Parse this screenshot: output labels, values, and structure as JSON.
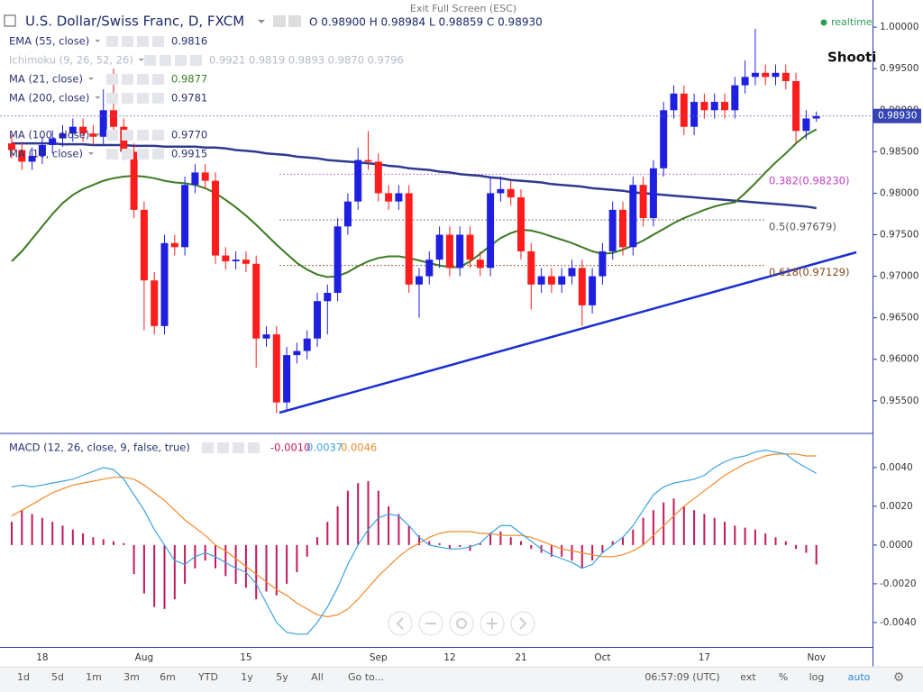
{
  "ui": {
    "header_ohlc": "O 0.98900 H 0.98984 L 0.98859 C 0.98930",
    "exit_fullscreen": "Exit Full Screen (ESC)",
    "realtime": "realtime",
    "annotation": "Shooti",
    "last_price": "0.98930",
    "indicators": [
      {
        "label": "EMA (55, close)",
        "value": "0.9816"
      },
      {
        "label": "Ichimoku (9, 26, 52, 26)",
        "value": "0.9921 0.9819 0.9893 0.9870 0.9796"
      },
      {
        "value": "0.9877"
      },
      {
        "value": "0.9781"
      },
      {
        "label": "MA (100, close)",
        "value": "0.9770"
      },
      {
        "label": "MA (10, close)",
        "value": "0.9915"
      }
    ],
    "macd_values": [
      "-0.0010",
      "0.0037",
      "0.0046"
    ],
    "toolbar": [
      "1d",
      "5d",
      "1m",
      "3m",
      "6m",
      "YTD",
      "1y",
      "5y",
      "All",
      "Go to..."
    ],
    "clock": "06:57:09 (UTC)",
    "right_buttons": [
      "ext",
      "%",
      "log",
      "auto"
    ]
  },
  "chart_data": [
    {
      "type": "candlestick",
      "title": "U.S. Dollar/Swiss Franc, D, FXCM",
      "categories": [
        null,
        null,
        null,
        "18",
        null,
        null,
        null,
        null,
        null,
        null,
        null,
        null,
        null,
        "Aug",
        null,
        null,
        null,
        null,
        null,
        null,
        null,
        null,
        null,
        "15",
        null,
        null,
        null,
        null,
        null,
        null,
        null,
        null,
        null,
        null,
        null,
        null,
        "Sep",
        null,
        null,
        null,
        null,
        null,
        null,
        "12",
        null,
        null,
        null,
        null,
        null,
        null,
        "21",
        null,
        null,
        null,
        null,
        null,
        null,
        null,
        "Oct",
        null,
        null,
        null,
        null,
        null,
        null,
        null,
        null,
        null,
        "17",
        null,
        null,
        null,
        null,
        null,
        null,
        null,
        null,
        null,
        null,
        "Nov"
      ],
      "open": [
        0.986,
        0.9852,
        0.9838,
        0.9845,
        0.9858,
        0.9866,
        0.9872,
        0.988,
        0.9872,
        0.9868,
        0.99,
        0.988,
        0.985,
        0.978,
        0.9695,
        0.964,
        0.974,
        0.9735,
        0.981,
        0.9825,
        0.9815,
        0.9725,
        0.9718,
        0.972,
        0.9715,
        0.9625,
        0.963,
        0.9548,
        0.9605,
        0.961,
        0.9625,
        0.967,
        0.968,
        0.976,
        0.979,
        0.984,
        0.9838,
        0.98,
        0.979,
        0.98,
        0.969,
        0.97,
        0.972,
        0.975,
        0.971,
        0.975,
        0.972,
        0.971,
        0.98,
        0.9805,
        0.9795,
        0.973,
        0.969,
        0.97,
        0.969,
        0.97,
        0.971,
        0.9665,
        0.97,
        0.973,
        0.978,
        0.9735,
        0.981,
        0.977,
        0.983,
        0.99,
        0.992,
        0.988,
        0.991,
        0.99,
        0.991,
        0.99,
        0.993,
        0.994,
        0.9945,
        0.994,
        0.9945,
        0.9935,
        0.9875,
        0.989
      ],
      "high": [
        0.987,
        0.9862,
        0.9855,
        0.9868,
        0.9876,
        0.9882,
        0.989,
        0.989,
        0.9882,
        0.9925,
        0.995,
        0.989,
        0.986,
        0.979,
        0.9705,
        0.975,
        0.975,
        0.982,
        0.9835,
        0.9835,
        0.9825,
        0.9735,
        0.973,
        0.973,
        0.9725,
        0.964,
        0.964,
        0.9615,
        0.962,
        0.9635,
        0.968,
        0.969,
        0.977,
        0.98,
        0.9855,
        0.9875,
        0.9848,
        0.981,
        0.981,
        0.981,
        0.971,
        0.973,
        0.976,
        0.976,
        0.976,
        0.976,
        0.973,
        0.982,
        0.982,
        0.9815,
        0.9805,
        0.974,
        0.971,
        0.971,
        0.971,
        0.972,
        0.972,
        0.971,
        0.974,
        0.979,
        0.979,
        0.982,
        0.982,
        0.984,
        0.991,
        0.993,
        0.993,
        0.992,
        0.992,
        0.992,
        0.992,
        0.994,
        0.996,
        0.9998,
        0.9955,
        0.9955,
        0.9955,
        0.9945,
        0.99,
        0.98984
      ],
      "low": [
        0.9842,
        0.9828,
        0.9828,
        0.9835,
        0.9848,
        0.9856,
        0.9862,
        0.9862,
        0.9858,
        0.9858,
        0.987,
        0.984,
        0.977,
        0.9635,
        0.963,
        0.963,
        0.9725,
        0.9725,
        0.98,
        0.9805,
        0.9715,
        0.9708,
        0.9708,
        0.9705,
        0.959,
        0.9615,
        0.9535,
        0.9538,
        0.9595,
        0.96,
        0.9615,
        0.963,
        0.967,
        0.975,
        0.978,
        0.9828,
        0.979,
        0.978,
        0.978,
        0.968,
        0.965,
        0.969,
        0.971,
        0.97,
        0.97,
        0.971,
        0.97,
        0.97,
        0.979,
        0.9785,
        0.972,
        0.966,
        0.968,
        0.968,
        0.968,
        0.969,
        0.964,
        0.9655,
        0.969,
        0.972,
        0.9725,
        0.9725,
        0.976,
        0.976,
        0.982,
        0.989,
        0.987,
        0.987,
        0.989,
        0.989,
        0.989,
        0.989,
        0.992,
        0.993,
        0.993,
        0.993,
        0.9925,
        0.986,
        0.9865,
        0.98859
      ],
      "close": [
        0.9852,
        0.9838,
        0.9845,
        0.9858,
        0.9866,
        0.9872,
        0.988,
        0.9872,
        0.9868,
        0.99,
        0.988,
        0.985,
        0.978,
        0.9695,
        0.964,
        0.974,
        0.9735,
        0.981,
        0.9825,
        0.9815,
        0.9725,
        0.9718,
        0.972,
        0.9715,
        0.9625,
        0.963,
        0.9548,
        0.9605,
        0.961,
        0.9625,
        0.967,
        0.968,
        0.976,
        0.979,
        0.984,
        0.9838,
        0.98,
        0.979,
        0.98,
        0.969,
        0.97,
        0.972,
        0.975,
        0.971,
        0.975,
        0.972,
        0.971,
        0.98,
        0.9805,
        0.9795,
        0.973,
        0.969,
        0.97,
        0.969,
        0.97,
        0.971,
        0.9665,
        0.97,
        0.973,
        0.978,
        0.9735,
        0.981,
        0.977,
        0.983,
        0.99,
        0.992,
        0.988,
        0.991,
        0.99,
        0.991,
        0.99,
        0.993,
        0.994,
        0.9945,
        0.994,
        0.9945,
        0.9935,
        0.9875,
        0.989,
        0.9893
      ],
      "up_color": "#1f1fe0",
      "down_color": "#ff1c1c",
      "last_color": "#7b5fb5",
      "ylim": [
        0.9514,
        1.0024
      ],
      "yticks": [
        {
          "value": 0.955,
          "label": "0.95500"
        },
        {
          "value": 0.96,
          "label": "0.96000"
        },
        {
          "value": 0.965,
          "label": "0.96500"
        },
        {
          "value": 0.97,
          "label": "0.97000"
        },
        {
          "value": 0.975,
          "label": "0.97500"
        },
        {
          "value": 0.98,
          "label": "0.98000"
        },
        {
          "value": 0.985,
          "label": "0.98500"
        },
        {
          "value": 0.99,
          "label": "0.99000"
        },
        {
          "value": 0.995,
          "label": "0.99500"
        },
        {
          "value": 1.0,
          "label": "1.00000"
        }
      ],
      "series": [
        {
          "name": "MA (200, close)",
          "color": "#2f3a8f",
          "values": [
            0.986,
            0.986,
            0.986,
            0.986,
            0.986,
            0.9859,
            0.9859,
            0.9859,
            0.9858,
            0.9858,
            0.9858,
            0.9858,
            0.9857,
            0.9857,
            0.9857,
            0.9856,
            0.9856,
            0.9856,
            0.9856,
            0.9855,
            0.9855,
            0.9854,
            0.9852,
            0.9851,
            0.985,
            0.9848,
            0.9847,
            0.9846,
            0.9844,
            0.9843,
            0.9842,
            0.984,
            0.9839,
            0.9838,
            0.9837,
            0.9836,
            0.9835,
            0.9833,
            0.9832,
            0.983,
            0.9829,
            0.9828,
            0.9826,
            0.9825,
            0.9823,
            0.9822,
            0.9821,
            0.9819,
            0.9818,
            0.9816,
            0.9815,
            0.9814,
            0.9813,
            0.9811,
            0.981,
            0.9809,
            0.9808,
            0.9806,
            0.9805,
            0.9804,
            0.9803,
            0.9801,
            0.98,
            0.9799,
            0.9798,
            0.9797,
            0.9796,
            0.9795,
            0.9794,
            0.9793,
            0.9792,
            0.9791,
            0.979,
            0.9789,
            0.9788,
            0.9787,
            0.9786,
            0.9785,
            0.9784,
            0.9782
          ]
        },
        {
          "name": "MA (21, close)",
          "color": "#3b7a22",
          "values": [
            0.9718,
            0.973,
            0.9745,
            0.976,
            0.9775,
            0.9788,
            0.9798,
            0.9805,
            0.981,
            0.9815,
            0.9818,
            0.982,
            0.9821,
            0.982,
            0.9818,
            0.9815,
            0.9813,
            0.9812,
            0.981,
            0.9806,
            0.98,
            0.9792,
            0.9783,
            0.9773,
            0.9762,
            0.975,
            0.9738,
            0.9727,
            0.9716,
            0.9708,
            0.9702,
            0.9699,
            0.97,
            0.9705,
            0.9712,
            0.9718,
            0.9722,
            0.9724,
            0.9724,
            0.9722,
            0.9719,
            0.9716,
            0.9713,
            0.9711,
            0.9711,
            0.9718,
            0.9727,
            0.9737,
            0.9746,
            0.9752,
            0.9756,
            0.9755,
            0.9752,
            0.9748,
            0.9744,
            0.974,
            0.9735,
            0.973,
            0.9727,
            0.9728,
            0.9732,
            0.9737,
            0.9743,
            0.975,
            0.9757,
            0.9764,
            0.977,
            0.9775,
            0.978,
            0.9784,
            0.9787,
            0.9789,
            0.98,
            0.9812,
            0.9825,
            0.9837,
            0.9848,
            0.986,
            0.987,
            0.9877
          ]
        }
      ],
      "levels": [
        {
          "value": 0.9823,
          "label": "0.382(0.98230)",
          "color": "#c040c0"
        },
        {
          "value": 0.97679,
          "label": "0.5(0.97679)",
          "color": "#555555"
        },
        {
          "value": 0.97129,
          "label": "0.618(0.97129)",
          "color": "#8a4a1a"
        }
      ]
    },
    {
      "type": "macd",
      "title": "MACD (12, 26, close, 9, false, true)",
      "ylim": [
        -0.00526,
        0.00567
      ],
      "yticks": [
        {
          "value": 0.004,
          "label": "0.0040"
        },
        {
          "value": 0.002,
          "label": "0.0020"
        },
        {
          "value": 0,
          "label": "0.0000"
        },
        {
          "value": -0.002,
          "label": "-0.0020"
        },
        {
          "value": -0.004,
          "label": "-0.0040"
        }
      ],
      "histogram": {
        "color": "#c2185b",
        "values": [
          0.0012,
          0.0018,
          0.0016,
          0.0014,
          0.0012,
          0.001,
          0.0008,
          0.0006,
          0.0004,
          0.0003,
          0.0002,
          0.0001,
          -0.0015,
          -0.0025,
          -0.0032,
          -0.0033,
          -0.0028,
          -0.002,
          -0.0012,
          -0.0008,
          -0.0012,
          -0.0016,
          -0.002,
          -0.0022,
          -0.0028,
          -0.0024,
          -0.0026,
          -0.002,
          -0.0014,
          -0.0006,
          0.0004,
          0.0012,
          0.002,
          0.0028,
          0.0032,
          0.0033,
          0.0028,
          0.002,
          0.0016,
          0.001,
          0.0005,
          0.0002,
          0.0001,
          -0.0002,
          -0.0001,
          -0.0003,
          0.0001,
          0.0006,
          0.0007,
          0.0004,
          0.0002,
          -0.0002,
          -0.0004,
          -0.0006,
          -0.0006,
          -0.0008,
          -0.0012,
          -0.0008,
          -0.0004,
          0.0002,
          0.0004,
          0.0008,
          0.0014,
          0.0018,
          0.0022,
          0.0024,
          0.002,
          0.0018,
          0.0016,
          0.0014,
          0.0012,
          0.001,
          0.0009,
          0.0008,
          0.0006,
          0.0004,
          0.0002,
          -0.0002,
          -0.0004,
          -0.001
        ]
      },
      "macd": {
        "color": "#3aa3e3",
        "values": [
          0.003,
          0.0031,
          0.003,
          0.0031,
          0.0032,
          0.0033,
          0.0034,
          0.0036,
          0.0038,
          0.004,
          0.0039,
          0.0034,
          0.0026,
          0.0018,
          0.0008,
          0.0,
          -0.0008,
          -0.001,
          -0.0006,
          -0.0004,
          -0.0006,
          -0.0009,
          -0.0012,
          -0.0014,
          -0.002,
          -0.003,
          -0.004,
          -0.0045,
          -0.0046,
          -0.0046,
          -0.004,
          -0.0032,
          -0.0022,
          -0.001,
          0.0,
          0.0008,
          0.0014,
          0.0016,
          0.0015,
          0.001,
          0.0004,
          0.0,
          -0.0001,
          -0.0002,
          -0.0002,
          -0.0001,
          0.0001,
          0.0006,
          0.001,
          0.001,
          0.0006,
          0.0002,
          -0.0002,
          -0.0005,
          -0.0007,
          -0.0009,
          -0.0012,
          -0.001,
          -0.0004,
          0.0,
          0.0004,
          0.001,
          0.0018,
          0.0026,
          0.003,
          0.0032,
          0.0033,
          0.0034,
          0.0036,
          0.004,
          0.0043,
          0.0045,
          0.0046,
          0.0048,
          0.0049,
          0.0048,
          0.0047,
          0.0043,
          0.004,
          0.0037
        ]
      },
      "signal": {
        "color": "#f28a2a",
        "values": [
          0.0015,
          0.0018,
          0.0021,
          0.0024,
          0.0027,
          0.0029,
          0.0031,
          0.0032,
          0.0033,
          0.0034,
          0.0035,
          0.0035,
          0.0034,
          0.0031,
          0.0027,
          0.0023,
          0.0018,
          0.0013,
          0.0009,
          0.0005,
          0.0,
          -0.0003,
          -0.0007,
          -0.0011,
          -0.0015,
          -0.0019,
          -0.0023,
          -0.0026,
          -0.003,
          -0.0033,
          -0.0036,
          -0.0037,
          -0.0036,
          -0.0033,
          -0.0028,
          -0.0022,
          -0.0016,
          -0.0011,
          -0.0006,
          -0.0002,
          0.0001,
          0.0004,
          0.0006,
          0.0007,
          0.0007,
          0.0007,
          0.0006,
          0.0006,
          0.0005,
          0.0005,
          0.0005,
          0.0004,
          0.0002,
          0.0,
          -0.0002,
          -0.0003,
          -0.0004,
          -0.0005,
          -0.0006,
          -0.0006,
          -0.0005,
          -0.0003,
          0.0,
          0.0005,
          0.001,
          0.0015,
          0.002,
          0.0024,
          0.0028,
          0.0032,
          0.0036,
          0.0039,
          0.0042,
          0.0044,
          0.0046,
          0.0047,
          0.0047,
          0.0047,
          0.0046,
          0.0046
        ]
      }
    }
  ]
}
